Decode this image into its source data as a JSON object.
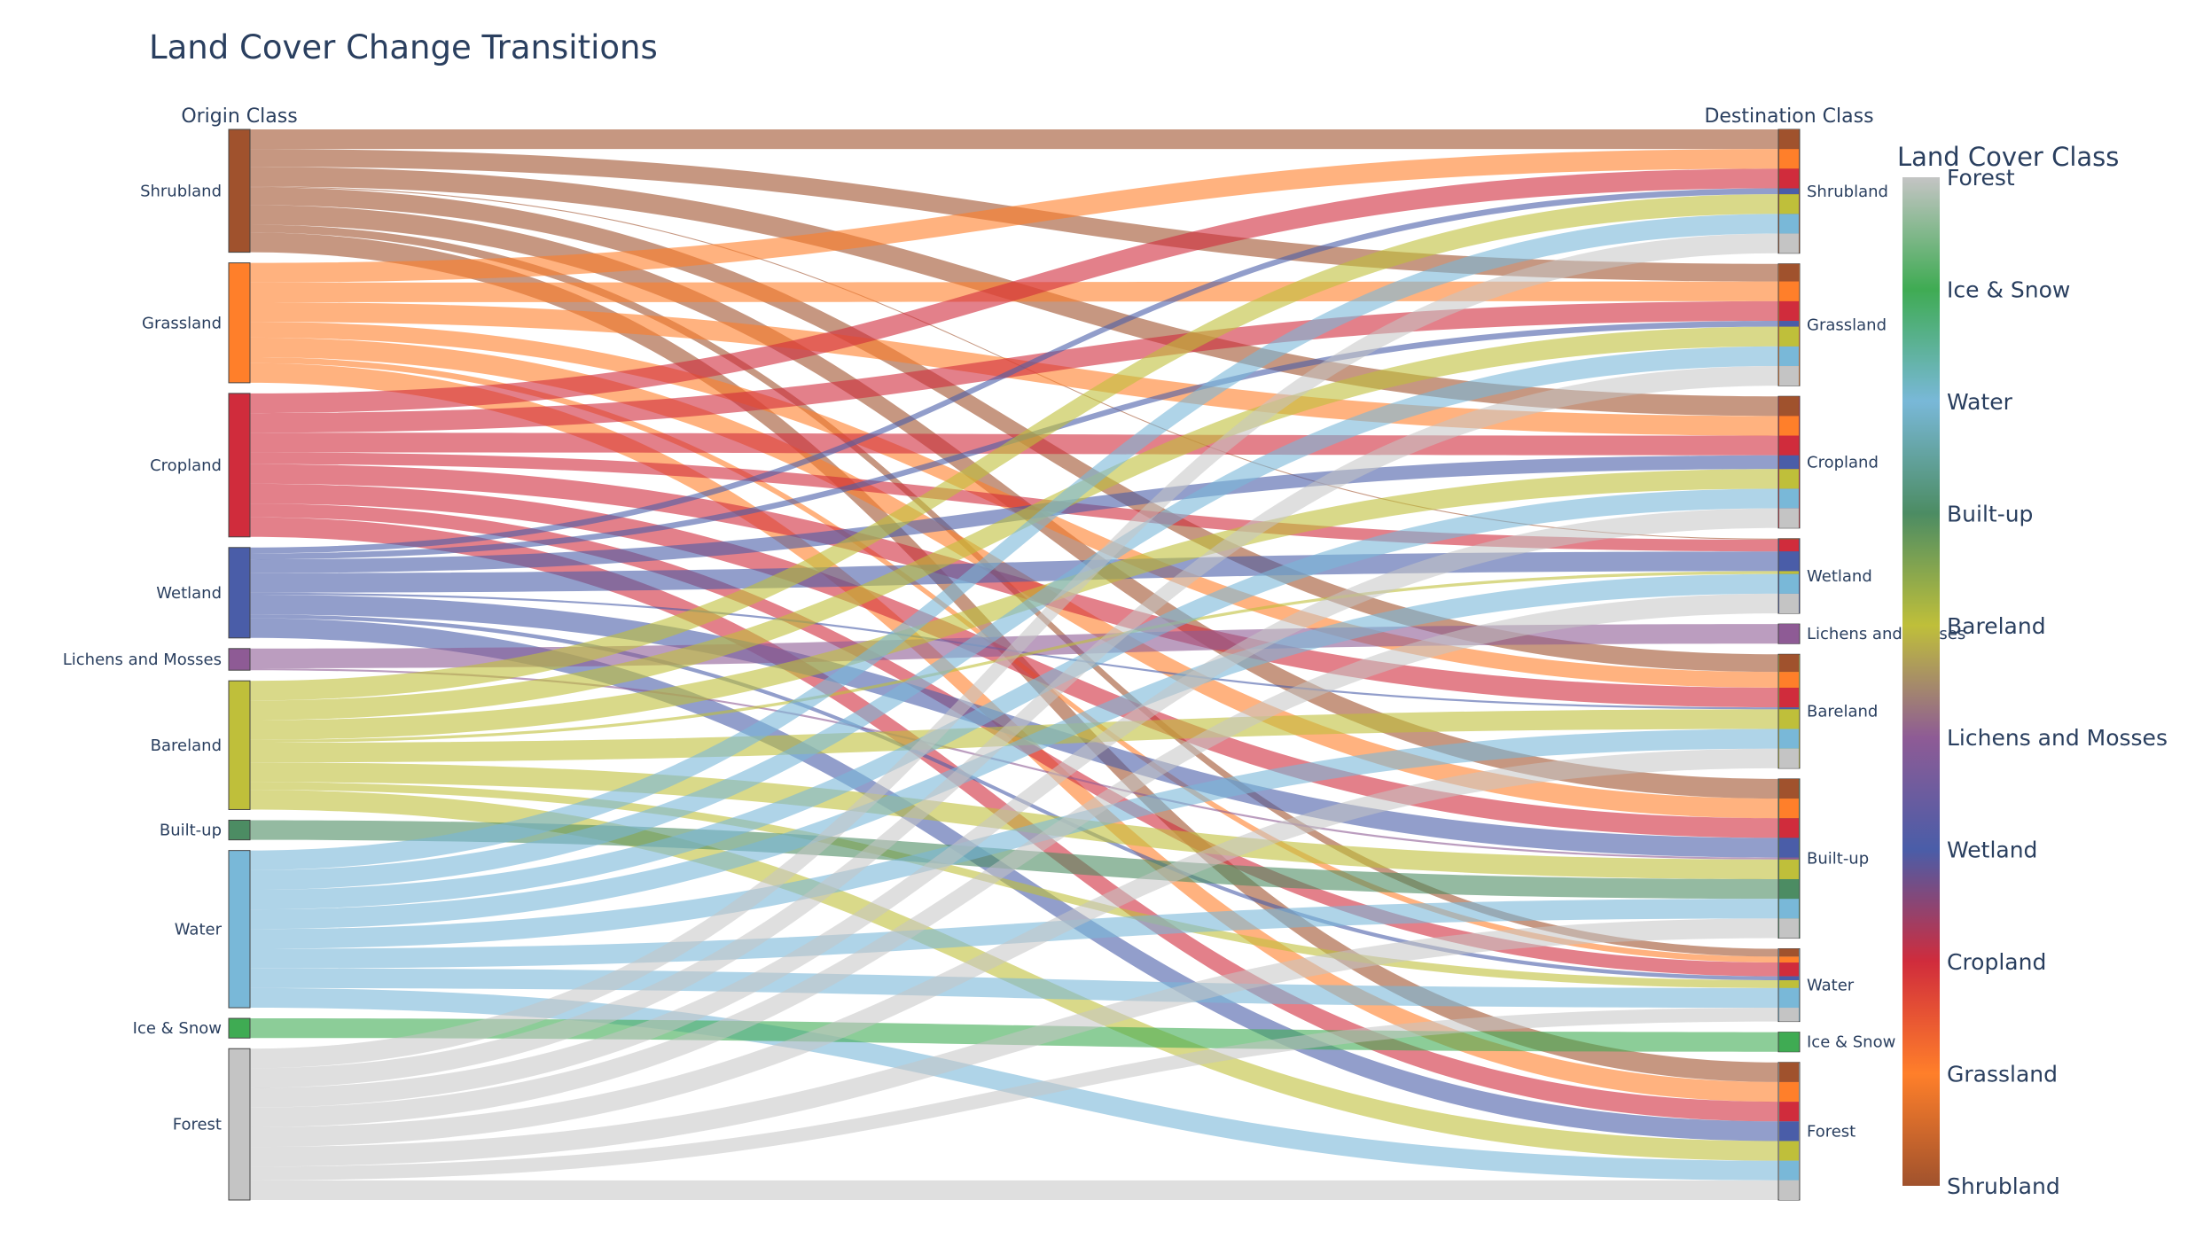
{
  "chart_data": {
    "type": "sankey",
    "title": "Land Cover Change Transitions",
    "left_column_title": "Origin Class",
    "right_column_title": "Destination Class",
    "colorbar_title": "Land Cover Class",
    "classes": [
      "Shrubland",
      "Grassland",
      "Cropland",
      "Wetland",
      "Lichens and Mosses",
      "Bareland",
      "Built-up",
      "Water",
      "Ice & Snow",
      "Forest"
    ],
    "colors": {
      "Shrubland": "#a0522d",
      "Grassland": "#ff7f2a",
      "Cropland": "#d02c3c",
      "Wetland": "#4a5da8",
      "Lichens and Mosses": "#8e5b95",
      "Bareland": "#bfbf3a",
      "Built-up": "#4c8c63",
      "Water": "#79b8d8",
      "Ice & Snow": "#3fab53",
      "Forest": "#c4c4c4"
    },
    "colorbar_ticks": [
      "Forest",
      "Ice & Snow",
      "Water",
      "Built-up",
      "Bareland",
      "Lichens and Mosses",
      "Wetland",
      "Cropland",
      "Grassland",
      "Shrubland"
    ],
    "links": [
      {
        "source": "Shrubland",
        "target": "Shrubland",
        "value": 1.0
      },
      {
        "source": "Shrubland",
        "target": "Built-up",
        "value": 1.0
      },
      {
        "source": "Shrubland",
        "target": "Grassland",
        "value": 0.9
      },
      {
        "source": "Shrubland",
        "target": "Cropland",
        "value": 1.0
      },
      {
        "source": "Shrubland",
        "target": "Wetland",
        "value": 0.05
      },
      {
        "source": "Shrubland",
        "target": "Bareland",
        "value": 0.9
      },
      {
        "source": "Shrubland",
        "target": "Water",
        "value": 0.4
      },
      {
        "source": "Shrubland",
        "target": "Forest",
        "value": 1.0
      },
      {
        "source": "Grassland",
        "target": "Shrubland",
        "value": 1.0
      },
      {
        "source": "Grassland",
        "target": "Built-up",
        "value": 1.0
      },
      {
        "source": "Grassland",
        "target": "Grassland",
        "value": 1.0
      },
      {
        "source": "Grassland",
        "target": "Cropland",
        "value": 1.0
      },
      {
        "source": "Grassland",
        "target": "Bareland",
        "value": 0.8
      },
      {
        "source": "Grassland",
        "target": "Water",
        "value": 0.3
      },
      {
        "source": "Grassland",
        "target": "Forest",
        "value": 1.0
      },
      {
        "source": "Cropland",
        "target": "Shrubland",
        "value": 1.0
      },
      {
        "source": "Cropland",
        "target": "Built-up",
        "value": 1.0
      },
      {
        "source": "Cropland",
        "target": "Grassland",
        "value": 1.0
      },
      {
        "source": "Cropland",
        "target": "Cropland",
        "value": 1.0
      },
      {
        "source": "Cropland",
        "target": "Wetland",
        "value": 0.6
      },
      {
        "source": "Cropland",
        "target": "Bareland",
        "value": 1.0
      },
      {
        "source": "Cropland",
        "target": "Water",
        "value": 0.7
      },
      {
        "source": "Cropland",
        "target": "Forest",
        "value": 1.0
      },
      {
        "source": "Wetland",
        "target": "Shrubland",
        "value": 0.3
      },
      {
        "source": "Wetland",
        "target": "Built-up",
        "value": 1.0
      },
      {
        "source": "Wetland",
        "target": "Grassland",
        "value": 0.3
      },
      {
        "source": "Wetland",
        "target": "Cropland",
        "value": 0.7
      },
      {
        "source": "Wetland",
        "target": "Wetland",
        "value": 1.0
      },
      {
        "source": "Wetland",
        "target": "Bareland",
        "value": 0.1
      },
      {
        "source": "Wetland",
        "target": "Water",
        "value": 0.2
      },
      {
        "source": "Wetland",
        "target": "Forest",
        "value": 1.0
      },
      {
        "source": "Lichens and Mosses",
        "target": "Built-up",
        "value": 0.1
      },
      {
        "source": "Lichens and Mosses",
        "target": "Lichens and Mosses",
        "value": 1.0
      },
      {
        "source": "Bareland",
        "target": "Shrubland",
        "value": 1.0
      },
      {
        "source": "Bareland",
        "target": "Built-up",
        "value": 1.0
      },
      {
        "source": "Bareland",
        "target": "Grassland",
        "value": 1.0
      },
      {
        "source": "Bareland",
        "target": "Cropland",
        "value": 1.0
      },
      {
        "source": "Bareland",
        "target": "Wetland",
        "value": 0.15
      },
      {
        "source": "Bareland",
        "target": "Bareland",
        "value": 1.0
      },
      {
        "source": "Bareland",
        "target": "Water",
        "value": 0.4
      },
      {
        "source": "Bareland",
        "target": "Forest",
        "value": 1.0
      },
      {
        "source": "Built-up",
        "target": "Built-up",
        "value": 1.0
      },
      {
        "source": "Water",
        "target": "Shrubland",
        "value": 1.0
      },
      {
        "source": "Water",
        "target": "Built-up",
        "value": 1.0
      },
      {
        "source": "Water",
        "target": "Grassland",
        "value": 1.0
      },
      {
        "source": "Water",
        "target": "Cropland",
        "value": 1.0
      },
      {
        "source": "Water",
        "target": "Wetland",
        "value": 1.0
      },
      {
        "source": "Water",
        "target": "Bareland",
        "value": 1.0
      },
      {
        "source": "Water",
        "target": "Water",
        "value": 1.0
      },
      {
        "source": "Water",
        "target": "Forest",
        "value": 1.0
      },
      {
        "source": "Ice & Snow",
        "target": "Ice & Snow",
        "value": 1.0
      },
      {
        "source": "Forest",
        "target": "Shrubland",
        "value": 1.0
      },
      {
        "source": "Forest",
        "target": "Built-up",
        "value": 1.0
      },
      {
        "source": "Forest",
        "target": "Grassland",
        "value": 1.0
      },
      {
        "source": "Forest",
        "target": "Cropland",
        "value": 1.0
      },
      {
        "source": "Forest",
        "target": "Wetland",
        "value": 1.0
      },
      {
        "source": "Forest",
        "target": "Bareland",
        "value": 1.0
      },
      {
        "source": "Forest",
        "target": "Water",
        "value": 0.7
      },
      {
        "source": "Forest",
        "target": "Forest",
        "value": 1.0
      }
    ]
  }
}
